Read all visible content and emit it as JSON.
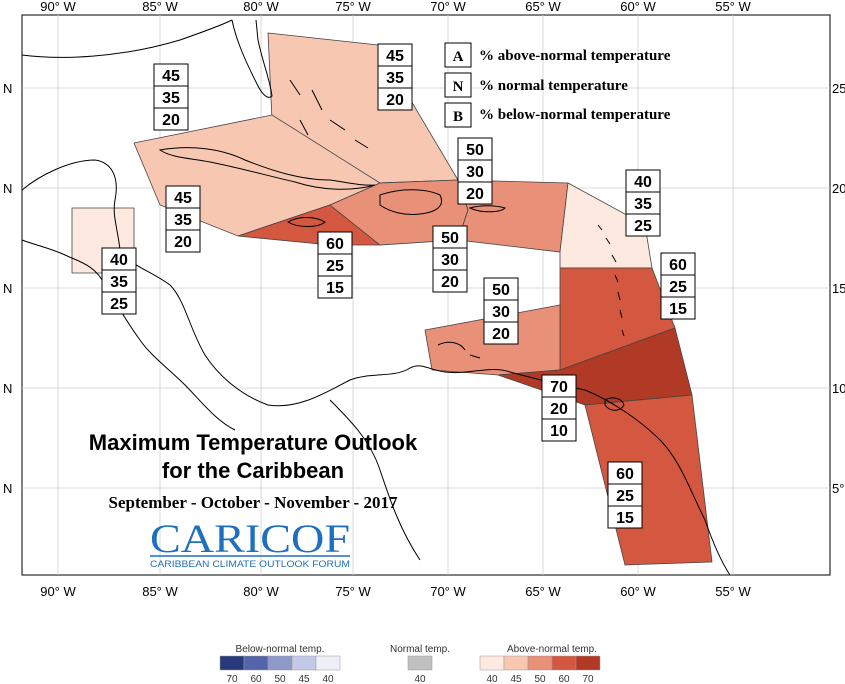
{
  "map": {
    "lon_labels": [
      "90° W",
      "85° W",
      "80° W",
      "75° W",
      "70° W",
      "65° W",
      "60° W",
      "55° W"
    ],
    "lat_labels_left": [
      "N",
      "N",
      "N",
      "N",
      "N"
    ],
    "lat_labels_right": [
      "25",
      "20",
      "15",
      "10",
      "5°"
    ]
  },
  "legend": {
    "items": [
      {
        "letter": "A",
        "desc": "% above-normal temperature"
      },
      {
        "letter": "N",
        "desc": "% normal temperature"
      },
      {
        "letter": "B",
        "desc": "% below-normal temperature"
      }
    ]
  },
  "regions": [
    {
      "name": "bahamas",
      "above": "45",
      "normal": "35",
      "below": "20",
      "color": "#f7c7b2"
    },
    {
      "name": "cuba",
      "above": "45",
      "normal": "35",
      "below": "20",
      "color": "#f7c7b2"
    },
    {
      "name": "cayman-west",
      "above": "45",
      "normal": "35",
      "below": "20",
      "color": "#f7c7b2"
    },
    {
      "name": "belize",
      "above": "40",
      "normal": "35",
      "below": "25",
      "color": "#fde9df"
    },
    {
      "name": "jamaica",
      "above": "60",
      "normal": "25",
      "below": "15",
      "color": "#d4573f"
    },
    {
      "name": "hispaniola",
      "above": "50",
      "normal": "30",
      "below": "20",
      "color": "#e89078"
    },
    {
      "name": "puerto-rico",
      "above": "50",
      "normal": "30",
      "below": "20",
      "color": "#e89078"
    },
    {
      "name": "leeward",
      "above": "40",
      "normal": "35",
      "below": "25",
      "color": "#fde9df"
    },
    {
      "name": "windward",
      "above": "60",
      "normal": "25",
      "below": "15",
      "color": "#d4573f"
    },
    {
      "name": "abc-islands",
      "above": "50",
      "normal": "30",
      "below": "20",
      "color": "#e89078"
    },
    {
      "name": "trinidad",
      "above": "70",
      "normal": "20",
      "below": "10",
      "color": "#b13a26"
    },
    {
      "name": "guianas",
      "above": "60",
      "normal": "25",
      "below": "15",
      "color": "#d4573f"
    }
  ],
  "title": {
    "line1": "Maximum Temperature Outlook",
    "line2": "for the Caribbean",
    "line3": "September - October - November - 2017"
  },
  "logo": {
    "name": "CARICOF",
    "tagline": "CARIBBEAN CLIMATE OUTLOOK FORUM"
  },
  "color_scale": {
    "below": {
      "title": "Below-normal temp.",
      "ticks": [
        "70",
        "60",
        "50",
        "45",
        "40"
      ],
      "colors": [
        "#283a7a",
        "#5564a8",
        "#8e98c9",
        "#c3c9e6",
        "#eef0f8"
      ]
    },
    "normal": {
      "title": "Normal temp.",
      "ticks": [
        "40"
      ],
      "colors": [
        "#c0c0c0"
      ]
    },
    "above": {
      "title": "Above-normal temp.",
      "ticks": [
        "40",
        "45",
        "50",
        "60",
        "70"
      ],
      "colors": [
        "#fde9df",
        "#f7c7b2",
        "#e89078",
        "#d4573f",
        "#b13a26"
      ]
    }
  }
}
